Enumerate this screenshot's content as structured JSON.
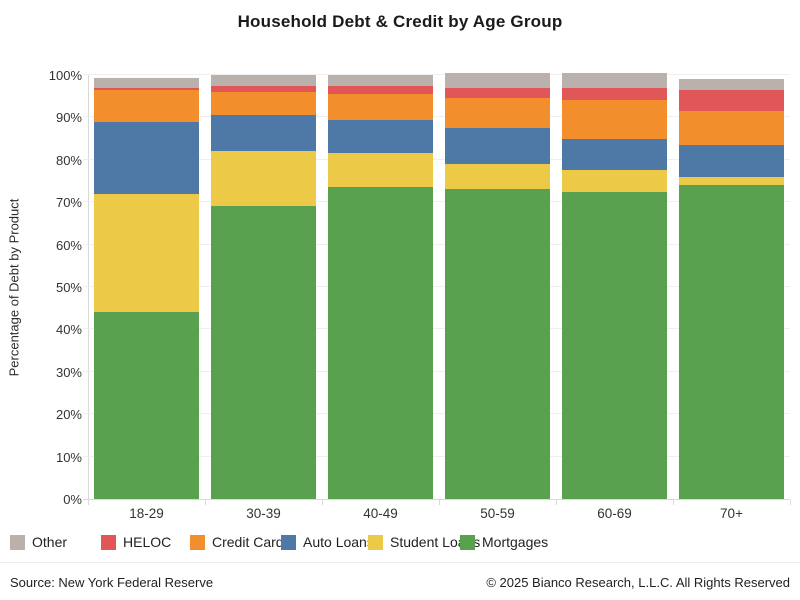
{
  "title": "Household Debt & Credit by Age Group",
  "y_axis_title": "Percentage of Debt by Product",
  "footer": {
    "source": "Source: New York Federal Reserve",
    "copyright": "© 2025 Bianco Research, L.L.C. All Rights Reserved"
  },
  "legend": [
    {
      "label": "Other",
      "color": "#bab0ac"
    },
    {
      "label": "HELOC",
      "color": "#e15759"
    },
    {
      "label": "Credit Cards",
      "color": "#f28e2b"
    },
    {
      "label": "Auto Loans",
      "color": "#4e79a7"
    },
    {
      "label": "Student Loans",
      "color": "#edc948"
    },
    {
      "label": "Mortgages",
      "color": "#59a14f"
    }
  ],
  "chart_data": {
    "type": "bar",
    "stacked": true,
    "title": "Household Debt & Credit by Age Group",
    "ylabel": "Percentage of Debt by Product",
    "xlabel": "",
    "ylim": [
      0,
      100
    ],
    "ytick_labels": [
      "0%",
      "10%",
      "20%",
      "30%",
      "40%",
      "50%",
      "60%",
      "70%",
      "80%",
      "90%",
      "100%"
    ],
    "grid": true,
    "legend_position": "bottom",
    "categories": [
      "18-29",
      "30-39",
      "40-49",
      "50-59",
      "60-69",
      "70+"
    ],
    "series": [
      {
        "name": "Mortgages",
        "color": "#59a14f",
        "values": [
          44,
          69,
          73.5,
          73,
          72.5,
          74
        ]
      },
      {
        "name": "Student Loans",
        "color": "#edc948",
        "values": [
          28,
          13,
          8,
          6,
          5,
          2
        ]
      },
      {
        "name": "Auto Loans",
        "color": "#4e79a7",
        "values": [
          17,
          8.5,
          8,
          8.5,
          7.5,
          7.5
        ]
      },
      {
        "name": "Credit Cards",
        "color": "#f28e2b",
        "values": [
          7.5,
          5.5,
          6,
          7,
          9,
          8
        ]
      },
      {
        "name": "HELOC",
        "color": "#e15759",
        "values": [
          0.4,
          1.5,
          2,
          2.5,
          3,
          5
        ]
      },
      {
        "name": "Other",
        "color": "#bab0ac",
        "values": [
          2.5,
          2.5,
          2.5,
          3.5,
          3.5,
          2.5
        ]
      }
    ]
  }
}
